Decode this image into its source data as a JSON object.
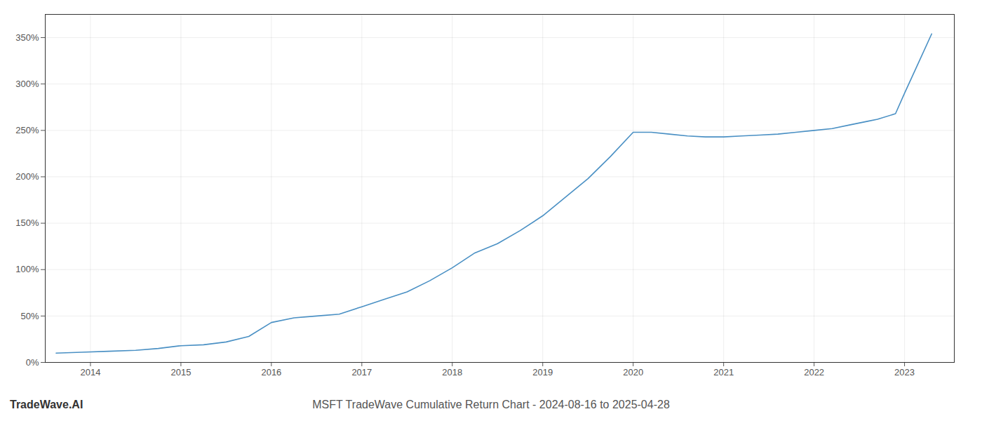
{
  "chart_data": {
    "type": "line",
    "title": "MSFT TradeWave Cumulative Return Chart - 2024-08-16 to 2025-04-28",
    "annotations": [
      "TradeWave.AI"
    ],
    "x": [
      2013.62,
      2013.9,
      2014.2,
      2014.5,
      2014.75,
      2015.0,
      2015.25,
      2015.5,
      2015.75,
      2016.0,
      2016.25,
      2016.5,
      2016.75,
      2017.0,
      2017.25,
      2017.5,
      2017.75,
      2018.0,
      2018.25,
      2018.5,
      2018.75,
      2019.0,
      2019.25,
      2019.5,
      2019.75,
      2020.0,
      2020.2,
      2020.4,
      2020.6,
      2020.8,
      2021.0,
      2021.2,
      2021.4,
      2021.6,
      2021.8,
      2022.0,
      2022.2,
      2022.4,
      2022.6,
      2022.7,
      2022.9,
      2023.0,
      2023.15,
      2023.3
    ],
    "values": [
      10,
      11,
      12,
      13,
      15,
      18,
      19,
      22,
      28,
      43,
      48,
      50,
      52,
      60,
      68,
      76,
      88,
      102,
      118,
      128,
      142,
      158,
      178,
      198,
      222,
      248,
      248,
      246,
      244,
      243,
      243,
      244,
      245,
      246,
      248,
      250,
      252,
      256,
      260,
      262,
      268,
      290,
      322,
      354
    ],
    "color": "#4a90c4",
    "xlim": [
      2013.5,
      2023.55
    ],
    "xticks": [
      2014,
      2015,
      2016,
      2017,
      2018,
      2019,
      2020,
      2021,
      2022,
      2023
    ],
    "ylim": [
      0,
      375
    ],
    "yticks": [
      {
        "value": 0,
        "label": "0%"
      },
      {
        "value": 50,
        "label": "50%"
      },
      {
        "value": 100,
        "label": "100%"
      },
      {
        "value": 150,
        "label": "150%"
      },
      {
        "value": 200,
        "label": "200%"
      },
      {
        "value": 250,
        "label": "250%"
      },
      {
        "value": 300,
        "label": "300%"
      },
      {
        "value": 350,
        "label": "350%"
      }
    ],
    "grid": true
  }
}
